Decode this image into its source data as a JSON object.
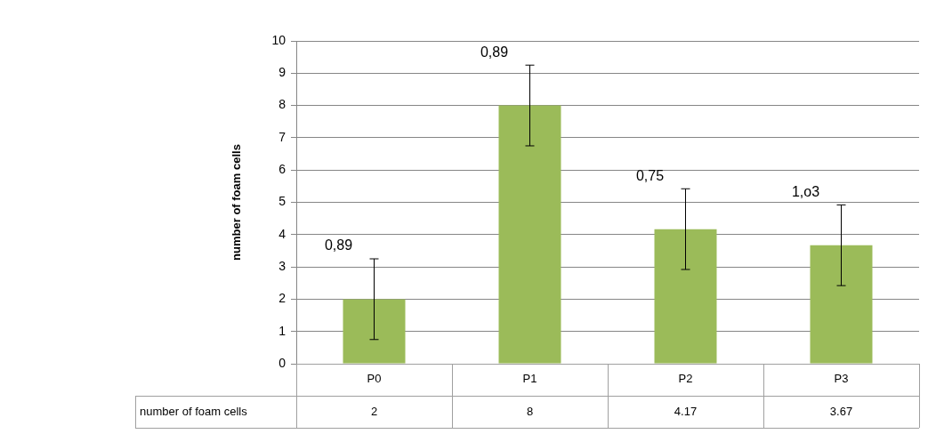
{
  "chart_data": {
    "type": "bar",
    "ylabel": "number of foam cells",
    "categories": [
      "P0",
      "P1",
      "P2",
      "P3"
    ],
    "series": [
      {
        "name": "number of foam cells",
        "color": "#9bbb59",
        "values": [
          2,
          8,
          4.17,
          3.67
        ],
        "errors": [
          1.25,
          1.25,
          1.25,
          1.25
        ]
      }
    ],
    "ylim": [
      0,
      10
    ],
    "yticks": [
      0,
      1,
      2,
      3,
      4,
      5,
      6,
      7,
      8,
      9,
      10
    ],
    "grid": "y",
    "data_labels": true,
    "annotations": [
      {
        "text": "0,89",
        "x": "P0",
        "y": 3.25
      },
      {
        "text": "0,89",
        "x": "P1",
        "y": 9.25
      },
      {
        "text": "0,75",
        "x": "P2",
        "y": 5.42
      },
      {
        "text": "1,o3",
        "x": "P3",
        "y": 4.92
      }
    ]
  }
}
